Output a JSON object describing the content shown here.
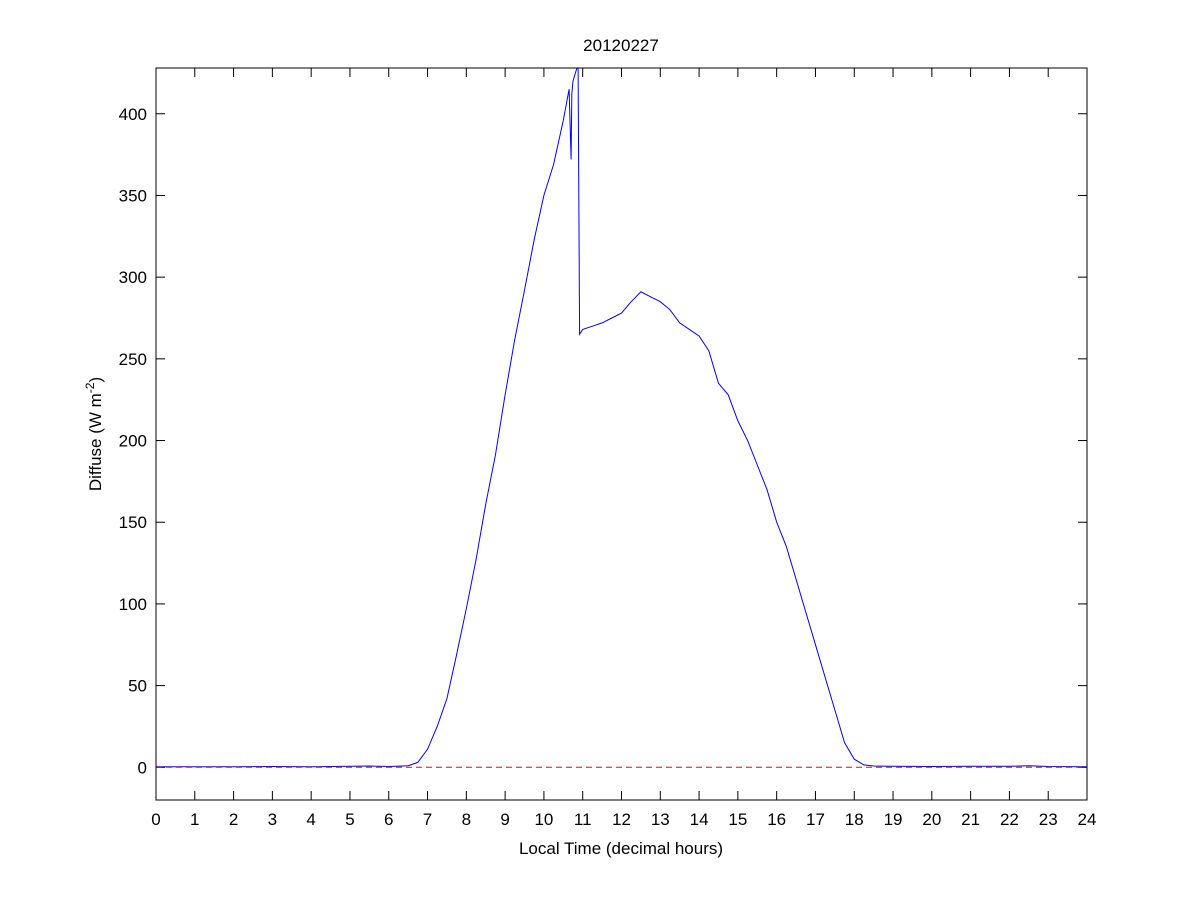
{
  "chart_data": {
    "type": "line",
    "title": "20120227",
    "xlabel": "Local Time (decimal hours)",
    "ylabel_main": "Diffuse (W m",
    "ylabel_sup": "-2",
    "ylabel_close": ")",
    "xlim": [
      0,
      24
    ],
    "ylim": [
      -20,
      428
    ],
    "xticks": [
      0,
      1,
      2,
      3,
      4,
      5,
      6,
      7,
      8,
      9,
      10,
      11,
      12,
      13,
      14,
      15,
      16,
      17,
      18,
      19,
      20,
      21,
      22,
      23,
      24
    ],
    "yticks": [
      0,
      50,
      100,
      150,
      200,
      250,
      300,
      350,
      400
    ],
    "grid": false,
    "series": [
      {
        "color": "#0000ff",
        "x": [
          0,
          1,
          2,
          3,
          4,
          5,
          5.5,
          6,
          6.5,
          6.75,
          7,
          7.25,
          7.5,
          7.75,
          8,
          8.25,
          8.5,
          8.75,
          9,
          9.25,
          9.5,
          9.75,
          10,
          10.25,
          10.5,
          10.65,
          10.7,
          10.72,
          10.75,
          10.85,
          10.88,
          10.9,
          10.92,
          11,
          11.25,
          11.5,
          11.75,
          12,
          12.25,
          12.5,
          12.75,
          13,
          13.25,
          13.5,
          13.75,
          14,
          14.25,
          14.5,
          14.75,
          15,
          15.25,
          15.5,
          15.75,
          16,
          16.25,
          16.5,
          16.75,
          17,
          17.25,
          17.5,
          17.75,
          18,
          18.25,
          18.5,
          19,
          20,
          21,
          22,
          22.5,
          23,
          24
        ],
        "y": [
          0.3,
          0.4,
          0.3,
          0.5,
          0.4,
          0.6,
          0.8,
          0.5,
          1,
          3,
          11,
          25,
          42,
          69,
          97,
          127,
          161,
          191,
          228,
          262,
          292,
          323,
          350,
          369,
          396,
          415,
          372,
          412,
          420,
          428,
          428,
          350,
          265,
          268,
          270,
          272,
          275,
          278,
          285,
          291,
          288,
          285,
          280,
          272,
          268,
          264,
          255,
          235,
          228,
          212,
          200,
          185,
          170,
          150,
          135,
          115,
          95,
          75,
          55,
          35,
          15,
          5,
          1.5,
          0.8,
          0.6,
          0.5,
          0.7,
          0.6,
          1,
          0.5,
          0.3
        ]
      },
      {
        "color": "#ff0000",
        "style": "dashed",
        "x": [
          0,
          24
        ],
        "y": [
          0,
          0
        ]
      }
    ]
  }
}
